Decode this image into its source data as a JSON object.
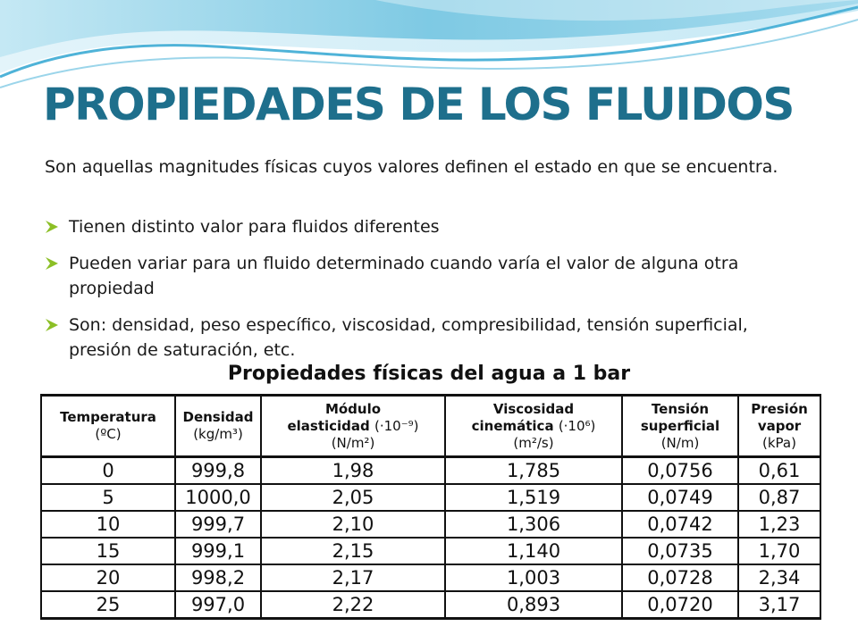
{
  "slide": {
    "title": "PROPIEDADES DE LOS FLUIDOS",
    "intro": "Son aquellas magnitudes físicas cuyos valores definen el estado en que se encuentra.",
    "bullets": [
      "Tienen distinto valor para fluidos diferentes",
      "Pueden variar para un fluido determinado cuando varía el valor de alguna otra propiedad",
      "Son: densidad, peso específico, viscosidad, compresibilidad, tensión superficial, presión de saturación, etc."
    ],
    "bullet_icon": "arrow-bullet-icon",
    "colors": {
      "title": "#1e6f8c",
      "bullet": "#8cbf26",
      "wave": "#6fc3e0"
    }
  },
  "table": {
    "caption": "Propiedades físicas del agua a 1 bar",
    "headers": [
      {
        "name": "Temperatura",
        "unit": "(ºC)"
      },
      {
        "name": "Densidad",
        "unit": "(kg/m³)"
      },
      {
        "name": "Módulo",
        "name2": "elasticidad",
        "factor": "(·10⁻⁹)",
        "unit": "(N/m²)"
      },
      {
        "name": "Viscosidad",
        "name2": "cinemática",
        "factor": "(·10⁶)",
        "unit": "(m²/s)"
      },
      {
        "name": "Tensión",
        "name2": "superficial",
        "unit": "(N/m)"
      },
      {
        "name": "Presión",
        "name2": "vapor",
        "unit": "(kPa)"
      }
    ],
    "rows": [
      [
        "0",
        "999,8",
        "1,98",
        "1,785",
        "0,0756",
        "0,61"
      ],
      [
        "5",
        "1000,0",
        "2,05",
        "1,519",
        "0,0749",
        "0,87"
      ],
      [
        "10",
        "999,7",
        "2,10",
        "1,306",
        "0,0742",
        "1,23"
      ],
      [
        "15",
        "999,1",
        "2,15",
        "1,140",
        "0,0735",
        "1,70"
      ],
      [
        "20",
        "998,2",
        "2,17",
        "1,003",
        "0,0728",
        "2,34"
      ],
      [
        "25",
        "997,0",
        "2,22",
        "0,893",
        "0,0720",
        "3,17"
      ]
    ]
  }
}
